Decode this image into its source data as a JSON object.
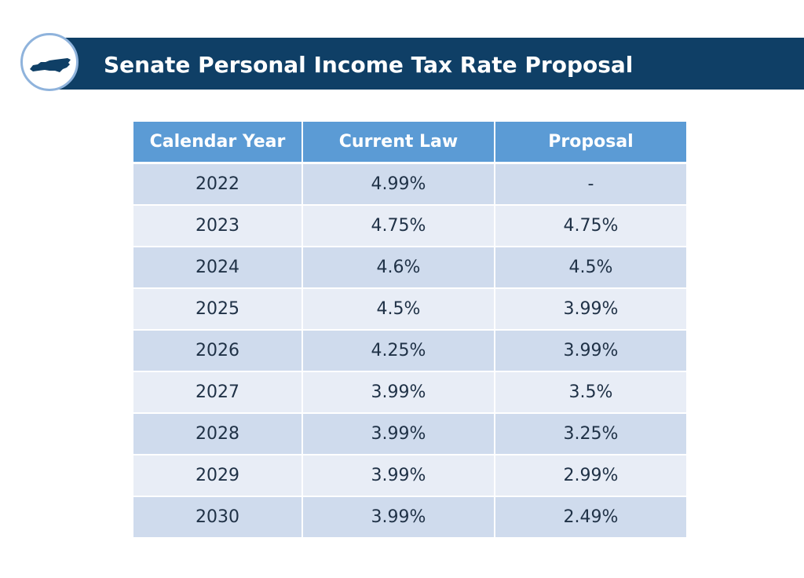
{
  "title": "Senate Personal Income Tax Rate Proposal",
  "logo": {
    "icon": "north-carolina-state-icon"
  },
  "colors": {
    "title_bar": "#0f3f66",
    "header_bg": "#5b9bd5",
    "row_dark": "#cfdbed",
    "row_light": "#e8edf6",
    "text": "#1f3146"
  },
  "table": {
    "headers": [
      "Calendar Year",
      "Current Law",
      "Proposal"
    ],
    "rows": [
      [
        "2022",
        "4.99%",
        "-"
      ],
      [
        "2023",
        "4.75%",
        "4.75%"
      ],
      [
        "2024",
        "4.6%",
        "4.5%"
      ],
      [
        "2025",
        "4.5%",
        "3.99%"
      ],
      [
        "2026",
        "4.25%",
        "3.99%"
      ],
      [
        "2027",
        "3.99%",
        "3.5%"
      ],
      [
        "2028",
        "3.99%",
        "3.25%"
      ],
      [
        "2029",
        "3.99%",
        "2.99%"
      ],
      [
        "2030",
        "3.99%",
        "2.49%"
      ]
    ]
  }
}
